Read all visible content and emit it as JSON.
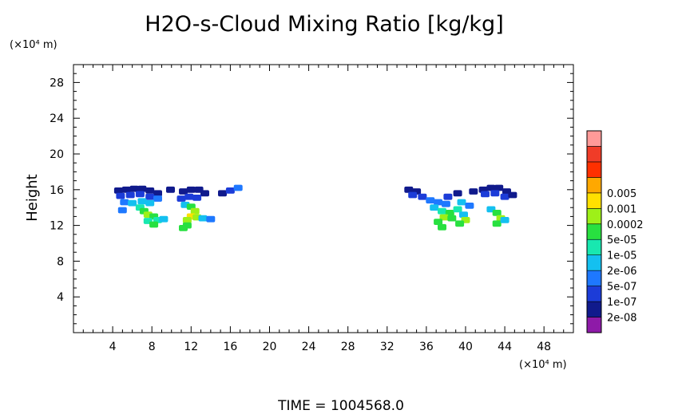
{
  "chart_data": {
    "type": "heatmap",
    "title": "H2O-s-Cloud Mixing Ratio [kg/kg]",
    "xlabel": "",
    "ylabel": "Height",
    "x_unit": "(×10⁴ m)",
    "y_unit": "(×10⁴ m)",
    "xlim": [
      0,
      51
    ],
    "ylim": [
      0,
      30
    ],
    "x_ticks": [
      4,
      8,
      12,
      16,
      20,
      24,
      28,
      32,
      36,
      40,
      44,
      48
    ],
    "y_ticks": [
      4,
      8,
      12,
      16,
      20,
      24,
      28
    ],
    "footer": "TIME  =  1004568.0",
    "colorbar": {
      "colors": [
        "#8e1aa8",
        "#101a8c",
        "#1c3cd8",
        "#1e78ff",
        "#14c0f0",
        "#18e8b0",
        "#28e040",
        "#9ef018",
        "#ffe000",
        "#ffa800",
        "#ff3000",
        "#f03c28",
        "#ff9a98"
      ],
      "labels": [
        "2e-08",
        "1e-07",
        "5e-07",
        "2e-06",
        "1e-05",
        "5e-05",
        "0.0002",
        "0.001",
        "0.005"
      ]
    },
    "cloud_cells": [
      {
        "x": 4.6,
        "y": 15.9,
        "level": 1
      },
      {
        "x": 5.4,
        "y": 16.0,
        "level": 1
      },
      {
        "x": 6.2,
        "y": 16.1,
        "level": 1
      },
      {
        "x": 7.0,
        "y": 16.1,
        "level": 1
      },
      {
        "x": 7.8,
        "y": 15.9,
        "level": 1
      },
      {
        "x": 8.6,
        "y": 15.6,
        "level": 1
      },
      {
        "x": 4.8,
        "y": 15.3,
        "level": 2
      },
      {
        "x": 5.8,
        "y": 15.4,
        "level": 2
      },
      {
        "x": 6.8,
        "y": 15.5,
        "level": 2
      },
      {
        "x": 7.8,
        "y": 15.2,
        "level": 2
      },
      {
        "x": 8.6,
        "y": 15.0,
        "level": 3
      },
      {
        "x": 5.2,
        "y": 14.6,
        "level": 3
      },
      {
        "x": 6.0,
        "y": 14.5,
        "level": 4
      },
      {
        "x": 7.0,
        "y": 14.7,
        "level": 4
      },
      {
        "x": 7.8,
        "y": 14.5,
        "level": 4
      },
      {
        "x": 5.0,
        "y": 13.7,
        "level": 3
      },
      {
        "x": 6.8,
        "y": 14.0,
        "level": 5
      },
      {
        "x": 7.2,
        "y": 13.6,
        "level": 6
      },
      {
        "x": 7.6,
        "y": 13.2,
        "level": 7
      },
      {
        "x": 8.2,
        "y": 13.0,
        "level": 6
      },
      {
        "x": 7.6,
        "y": 12.5,
        "level": 5
      },
      {
        "x": 8.6,
        "y": 12.6,
        "level": 5
      },
      {
        "x": 8.2,
        "y": 12.1,
        "level": 6
      },
      {
        "x": 9.2,
        "y": 12.7,
        "level": 4
      },
      {
        "x": 9.9,
        "y": 16.0,
        "level": 1
      },
      {
        "x": 11.2,
        "y": 15.8,
        "level": 1
      },
      {
        "x": 12.0,
        "y": 16.0,
        "level": 1
      },
      {
        "x": 12.8,
        "y": 16.0,
        "level": 1
      },
      {
        "x": 13.4,
        "y": 15.6,
        "level": 1
      },
      {
        "x": 11.0,
        "y": 15.0,
        "level": 2
      },
      {
        "x": 11.8,
        "y": 15.2,
        "level": 2
      },
      {
        "x": 12.6,
        "y": 15.1,
        "level": 2
      },
      {
        "x": 11.4,
        "y": 14.3,
        "level": 4
      },
      {
        "x": 12.0,
        "y": 14.1,
        "level": 6
      },
      {
        "x": 12.4,
        "y": 13.6,
        "level": 7
      },
      {
        "x": 12.0,
        "y": 13.0,
        "level": 8
      },
      {
        "x": 11.6,
        "y": 12.6,
        "level": 7
      },
      {
        "x": 12.6,
        "y": 12.9,
        "level": 7
      },
      {
        "x": 11.6,
        "y": 12.0,
        "level": 6
      },
      {
        "x": 11.2,
        "y": 11.7,
        "level": 6
      },
      {
        "x": 13.2,
        "y": 12.8,
        "level": 4
      },
      {
        "x": 14.0,
        "y": 12.7,
        "level": 3
      },
      {
        "x": 15.2,
        "y": 15.6,
        "level": 1
      },
      {
        "x": 16.0,
        "y": 15.9,
        "level": 2
      },
      {
        "x": 16.8,
        "y": 16.2,
        "level": 3
      },
      {
        "x": 34.2,
        "y": 16.0,
        "level": 1
      },
      {
        "x": 35.0,
        "y": 15.8,
        "level": 1
      },
      {
        "x": 34.6,
        "y": 15.4,
        "level": 2
      },
      {
        "x": 35.6,
        "y": 15.2,
        "level": 2
      },
      {
        "x": 36.4,
        "y": 14.8,
        "level": 3
      },
      {
        "x": 37.2,
        "y": 14.6,
        "level": 3
      },
      {
        "x": 38.0,
        "y": 14.4,
        "level": 3
      },
      {
        "x": 36.8,
        "y": 14.0,
        "level": 4
      },
      {
        "x": 37.6,
        "y": 13.6,
        "level": 5
      },
      {
        "x": 38.4,
        "y": 13.4,
        "level": 6
      },
      {
        "x": 37.8,
        "y": 12.9,
        "level": 7
      },
      {
        "x": 38.6,
        "y": 12.8,
        "level": 6
      },
      {
        "x": 37.2,
        "y": 12.4,
        "level": 6
      },
      {
        "x": 37.6,
        "y": 11.8,
        "level": 6
      },
      {
        "x": 39.2,
        "y": 13.8,
        "level": 5
      },
      {
        "x": 39.8,
        "y": 13.2,
        "level": 4
      },
      {
        "x": 39.6,
        "y": 14.6,
        "level": 4
      },
      {
        "x": 40.4,
        "y": 14.2,
        "level": 3
      },
      {
        "x": 40.0,
        "y": 12.6,
        "level": 7
      },
      {
        "x": 39.4,
        "y": 12.2,
        "level": 6
      },
      {
        "x": 38.2,
        "y": 15.2,
        "level": 2
      },
      {
        "x": 39.2,
        "y": 15.6,
        "level": 1
      },
      {
        "x": 40.8,
        "y": 15.8,
        "level": 1
      },
      {
        "x": 41.8,
        "y": 16.0,
        "level": 1
      },
      {
        "x": 42.6,
        "y": 16.2,
        "level": 1
      },
      {
        "x": 43.4,
        "y": 16.2,
        "level": 1
      },
      {
        "x": 44.2,
        "y": 15.8,
        "level": 1
      },
      {
        "x": 42.0,
        "y": 15.5,
        "level": 2
      },
      {
        "x": 43.0,
        "y": 15.6,
        "level": 2
      },
      {
        "x": 44.0,
        "y": 15.2,
        "level": 2
      },
      {
        "x": 44.8,
        "y": 15.4,
        "level": 1
      },
      {
        "x": 42.6,
        "y": 13.8,
        "level": 4
      },
      {
        "x": 43.2,
        "y": 13.4,
        "level": 6
      },
      {
        "x": 43.6,
        "y": 12.8,
        "level": 7
      },
      {
        "x": 43.2,
        "y": 12.2,
        "level": 6
      },
      {
        "x": 44.0,
        "y": 12.6,
        "level": 4
      }
    ]
  }
}
